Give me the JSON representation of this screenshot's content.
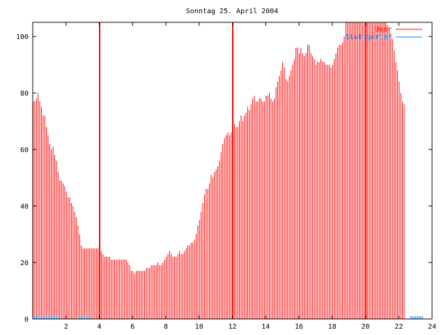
{
  "chart_data": {
    "type": "bar",
    "title": "Sonntag 25. April 2004",
    "xlabel": "",
    "ylabel": "",
    "xlim": [
      0,
      24
    ],
    "ylim": [
      0,
      105
    ],
    "x_ticks": [
      2,
      4,
      6,
      8,
      10,
      12,
      14,
      16,
      18,
      20,
      22,
      24
    ],
    "y_ticks": [
      0,
      20,
      40,
      60,
      80,
      100
    ],
    "grid": false,
    "legend_position": "top-right",
    "series": [
      {
        "name": "User",
        "color": "#ff0000",
        "x_start": 0,
        "x_step": 0.1,
        "values": [
          77,
          77,
          78,
          80,
          77,
          75,
          72,
          72,
          68,
          65,
          62,
          60,
          61,
          58,
          56,
          52,
          49,
          49,
          48,
          47,
          45,
          43,
          43,
          41,
          40,
          38,
          36,
          33,
          30,
          26,
          25,
          25,
          25,
          25,
          25,
          25,
          25,
          25,
          25,
          25,
          25,
          24,
          23,
          22,
          22,
          22,
          22,
          21,
          21,
          21,
          21,
          21,
          21,
          21,
          21,
          21,
          21,
          20,
          19,
          17,
          17,
          16,
          17,
          17,
          17,
          17,
          17,
          17,
          18,
          18,
          18,
          19,
          19,
          19,
          19,
          20,
          19,
          19,
          20,
          21,
          22,
          23,
          24,
          23,
          22,
          22,
          22,
          23,
          24,
          23,
          23,
          24,
          25,
          26,
          26,
          27,
          27,
          28,
          30,
          33,
          35,
          38,
          41,
          44,
          46,
          46,
          48,
          51,
          50,
          52,
          53,
          54,
          56,
          59,
          62,
          64,
          65,
          66,
          65,
          66,
          68,
          69,
          68,
          68,
          70,
          72,
          70,
          72,
          73,
          75,
          74,
          76,
          78,
          79,
          77,
          77,
          78,
          78,
          77,
          77,
          79,
          79,
          80,
          78,
          77,
          78,
          82,
          84,
          86,
          88,
          91,
          89,
          85,
          84,
          86,
          88,
          90,
          92,
          96,
          96,
          94,
          96,
          94,
          93,
          94,
          97,
          97,
          94,
          93,
          92,
          90,
          91,
          91,
          92,
          91,
          91,
          90,
          90,
          90,
          89,
          90,
          92,
          94,
          96,
          97,
          97,
          98,
          100,
          105,
          105,
          105,
          105,
          105,
          105,
          105,
          105,
          105,
          105,
          105,
          105,
          105,
          105,
          105,
          105,
          105,
          105,
          105,
          105,
          105,
          105,
          105,
          105,
          105,
          104,
          103,
          101,
          99,
          95,
          91,
          88,
          84,
          80,
          77,
          76
        ]
      },
      {
        "name": "Stuttgarter",
        "color": "#0088ff",
        "x_start": 0,
        "x_step": 0.1,
        "values": [
          1,
          1,
          1,
          1,
          1,
          1,
          1,
          1,
          1,
          1,
          1,
          1,
          1,
          1,
          1,
          1,
          0,
          0,
          0,
          0,
          0,
          0,
          0,
          0,
          0,
          0,
          0,
          1,
          1,
          1,
          1,
          1,
          1,
          1,
          0,
          0,
          0,
          0,
          0,
          0,
          0,
          0,
          0,
          0,
          0,
          0,
          0,
          0,
          0,
          0,
          0,
          0,
          0,
          0,
          0,
          0,
          0,
          0,
          0,
          0,
          0,
          0,
          0,
          0,
          0,
          0,
          0,
          0,
          0,
          0,
          0,
          0,
          0,
          0,
          0,
          0,
          0,
          0,
          0,
          0,
          0,
          0,
          0,
          0,
          0,
          0,
          0,
          0,
          0,
          0,
          0,
          0,
          0,
          0,
          0,
          0,
          0,
          0,
          0,
          0,
          0,
          0,
          0,
          0,
          0,
          0,
          0,
          0,
          0,
          0,
          0,
          0,
          0,
          0,
          0,
          0,
          0,
          0,
          0,
          0,
          0,
          0,
          0,
          0,
          0,
          0,
          0,
          0,
          0,
          0,
          0,
          0,
          0,
          0,
          0,
          0,
          0,
          0,
          0,
          0,
          0,
          0,
          0,
          0,
          0,
          0,
          0,
          0,
          0,
          0,
          0,
          0,
          0,
          0,
          0,
          0,
          0,
          0,
          0,
          0,
          0,
          0,
          0,
          0,
          0,
          0,
          0,
          0,
          0,
          0,
          0,
          0,
          0,
          0,
          0,
          0,
          0,
          0,
          0,
          0,
          0,
          0,
          0,
          0,
          0,
          0,
          0,
          0,
          0,
          0,
          0,
          0,
          0,
          0,
          0,
          0,
          0,
          0,
          0,
          0,
          0,
          0,
          0,
          0,
          0,
          0,
          0,
          0,
          0,
          0,
          0,
          0,
          0,
          0,
          0,
          0,
          0,
          0,
          0,
          0,
          0,
          0,
          0,
          0,
          0,
          0,
          0,
          1,
          1,
          1,
          1,
          1,
          1,
          1,
          1
        ]
      }
    ],
    "markers": [
      4,
      12,
      20
    ]
  }
}
